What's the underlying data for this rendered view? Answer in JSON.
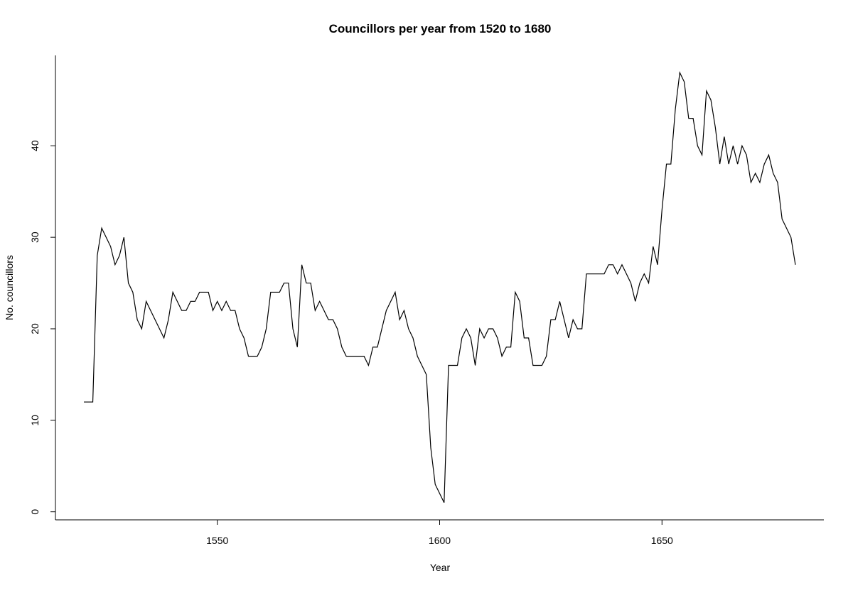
{
  "chart_data": {
    "type": "line",
    "title": "Councillors per year from 1520 to 1680",
    "x_label": "Year",
    "y_label": "No. councillors",
    "x": [
      1520,
      1521,
      1522,
      1523,
      1524,
      1525,
      1526,
      1527,
      1528,
      1529,
      1530,
      1531,
      1532,
      1533,
      1534,
      1535,
      1536,
      1537,
      1538,
      1539,
      1540,
      1541,
      1542,
      1543,
      1544,
      1545,
      1546,
      1547,
      1548,
      1549,
      1550,
      1551,
      1552,
      1553,
      1554,
      1555,
      1556,
      1557,
      1558,
      1559,
      1560,
      1561,
      1562,
      1563,
      1564,
      1565,
      1566,
      1567,
      1568,
      1569,
      1570,
      1571,
      1572,
      1573,
      1574,
      1575,
      1576,
      1577,
      1578,
      1579,
      1580,
      1581,
      1582,
      1583,
      1584,
      1585,
      1586,
      1587,
      1588,
      1589,
      1590,
      1591,
      1592,
      1593,
      1594,
      1595,
      1596,
      1597,
      1598,
      1599,
      1600,
      1601,
      1602,
      1603,
      1604,
      1605,
      1606,
      1607,
      1608,
      1609,
      1610,
      1611,
      1612,
      1613,
      1614,
      1615,
      1616,
      1617,
      1618,
      1619,
      1620,
      1621,
      1622,
      1623,
      1624,
      1625,
      1626,
      1627,
      1628,
      1629,
      1630,
      1631,
      1632,
      1633,
      1634,
      1635,
      1636,
      1637,
      1638,
      1639,
      1640,
      1641,
      1642,
      1643,
      1644,
      1645,
      1646,
      1647,
      1648,
      1649,
      1650,
      1651,
      1652,
      1653,
      1654,
      1655,
      1656,
      1657,
      1658,
      1659,
      1660,
      1661,
      1662,
      1663,
      1664,
      1665,
      1666,
      1667,
      1668,
      1669,
      1670,
      1671,
      1672,
      1673,
      1674,
      1675,
      1676,
      1677,
      1678,
      1679,
      1680
    ],
    "series": [
      {
        "color": "#000000",
        "values": [
          12,
          12,
          12,
          28,
          31,
          30,
          29,
          27,
          28,
          30,
          25,
          24,
          21,
          20,
          23,
          22,
          21,
          20,
          19,
          21,
          24,
          23,
          22,
          22,
          23,
          23,
          24,
          24,
          24,
          22,
          23,
          22,
          23,
          22,
          22,
          20,
          19,
          17,
          17,
          17,
          18,
          20,
          24,
          24,
          24,
          25,
          25,
          20,
          18,
          27,
          25,
          25,
          22,
          23,
          22,
          21,
          21,
          20,
          18,
          17,
          17,
          17,
          17,
          17,
          16,
          18,
          18,
          20,
          22,
          23,
          24,
          21,
          22,
          20,
          19,
          17,
          16,
          15,
          7,
          3,
          2,
          1,
          16,
          16,
          16,
          19,
          20,
          19,
          16,
          20,
          19,
          20,
          20,
          19,
          17,
          18,
          18,
          24,
          23,
          19,
          19,
          16,
          16,
          16,
          17,
          21,
          21,
          23,
          21,
          19,
          21,
          20,
          20,
          26,
          26,
          26,
          26,
          26,
          27,
          27,
          26,
          27,
          26,
          25,
          23,
          25,
          26,
          25,
          29,
          27,
          33,
          38,
          38,
          44,
          48,
          47,
          43,
          43,
          40,
          39,
          46,
          45,
          42,
          38,
          41,
          38,
          40,
          38,
          40,
          39,
          36,
          37,
          36,
          38,
          39,
          37,
          36,
          32,
          31,
          30,
          27
        ]
      }
    ],
    "xlim": [
      1513.6,
      1686.4
    ],
    "ylim": [
      -0.88,
      49.88
    ],
    "xticks": [
      1550,
      1600,
      1650
    ],
    "yticks": [
      0,
      10,
      20,
      30,
      40
    ]
  }
}
